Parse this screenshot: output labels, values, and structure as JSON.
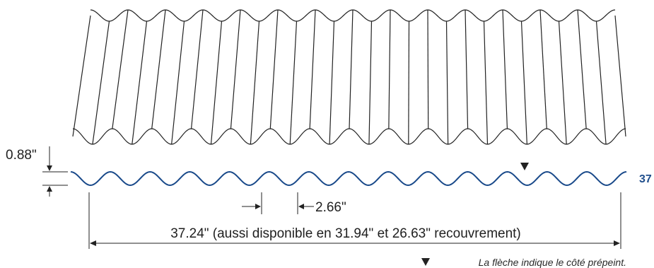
{
  "diagram": {
    "profile_number": "37",
    "profile_color": "#1a4a8a",
    "line_color": "#222222",
    "dimensions": {
      "height": "0.88\"",
      "pitch": "2.66\"",
      "coverage": "37.24\" (aussi disponible en 31.94\" et 26.63\" recouvrement)"
    },
    "note": "La flèche indique le côté prépeint.",
    "indicator_icon": "triangle-down-icon"
  }
}
